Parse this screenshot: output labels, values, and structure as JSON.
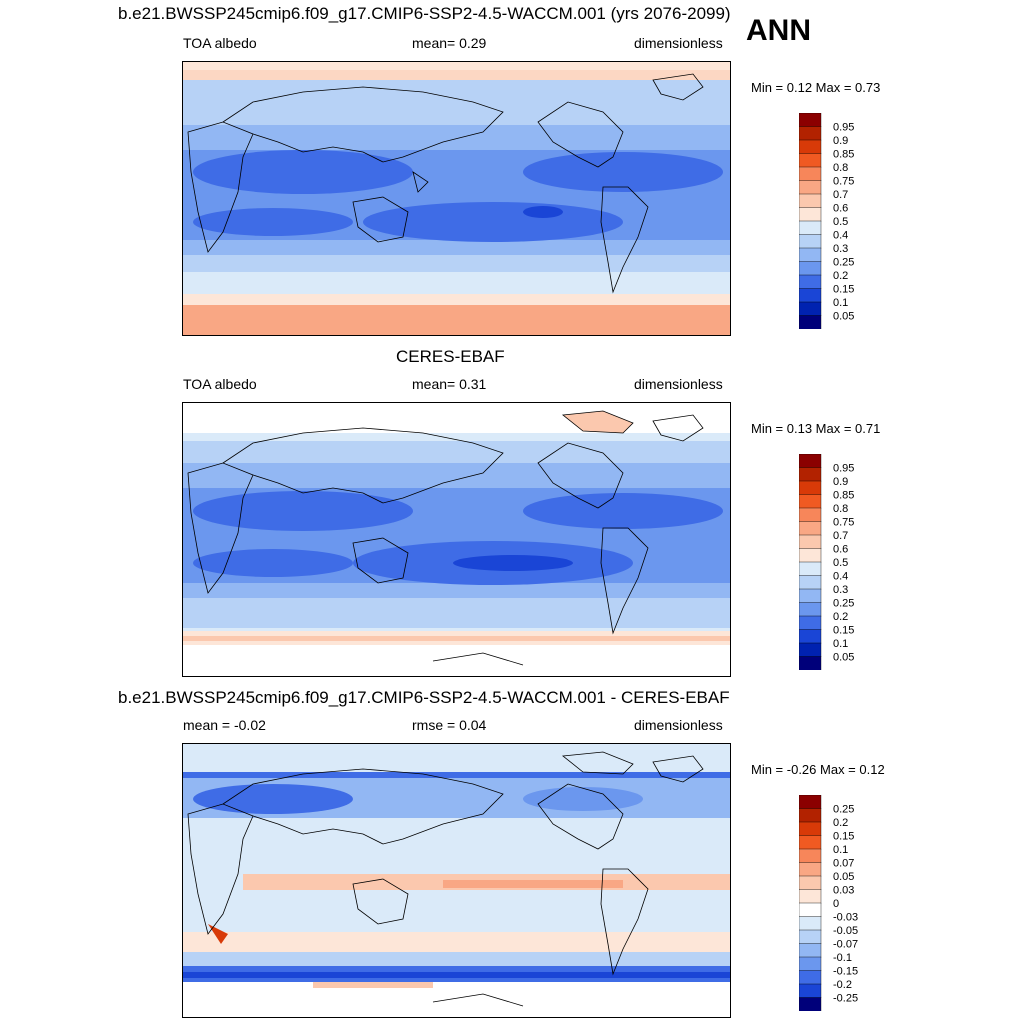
{
  "season": "ANN",
  "panels": [
    {
      "title": "b.e21.BWSSP245cmip6.f09_g17.CMIP6-SSP2-4.5-WACCM.001 (yrs 2076-2099)",
      "left_label": "TOA albedo",
      "center_label": "mean=   0.29",
      "right_label": "dimensionless",
      "minmax": "Min =   0.12 Max =   0.73",
      "colorbar": {
        "labels": [
          "0.95",
          "0.9",
          "0.85",
          "0.8",
          "0.75",
          "0.7",
          "0.6",
          "0.5",
          "0.4",
          "0.3",
          "0.25",
          "0.2",
          "0.15",
          "0.1",
          "0.05"
        ],
        "colors": [
          "#8b0000",
          "#b22200",
          "#d83a08",
          "#f05a22",
          "#f7865a",
          "#f9a784",
          "#fbc8ae",
          "#fde6d8",
          "#daeaf9",
          "#b7d2f6",
          "#92b7f3",
          "#6b97ee",
          "#3f6ce6",
          "#1a45d6",
          "#0022b0",
          "#00007a"
        ]
      }
    },
    {
      "title": "CERES-EBAF",
      "left_label": "TOA albedo",
      "center_label": "mean=   0.31",
      "right_label": "dimensionless",
      "minmax": "Min =   0.13 Max =   0.71",
      "colorbar": {
        "labels": [
          "0.95",
          "0.9",
          "0.85",
          "0.8",
          "0.75",
          "0.7",
          "0.6",
          "0.5",
          "0.4",
          "0.3",
          "0.25",
          "0.2",
          "0.15",
          "0.1",
          "0.05"
        ],
        "colors": [
          "#8b0000",
          "#b22200",
          "#d83a08",
          "#f05a22",
          "#f7865a",
          "#f9a784",
          "#fbc8ae",
          "#fde6d8",
          "#daeaf9",
          "#b7d2f6",
          "#92b7f3",
          "#6b97ee",
          "#3f6ce6",
          "#1a45d6",
          "#0022b0",
          "#00007a"
        ]
      }
    },
    {
      "title": "b.e21.BWSSP245cmip6.f09_g17.CMIP6-SSP2-4.5-WACCM.001 - CERES-EBAF",
      "left_label": "mean =  -0.02",
      "center_label": "rmse =   0.04",
      "right_label": "dimensionless",
      "minmax": "Min =  -0.26 Max =   0.12",
      "colorbar": {
        "labels": [
          "0.25",
          "0.2",
          "0.15",
          "0.1",
          "0.07",
          "0.05",
          "0.03",
          "0",
          "-0.03",
          "-0.05",
          "-0.07",
          "-0.1",
          "-0.15",
          "-0.2",
          "-0.25"
        ],
        "colors": [
          "#8b0000",
          "#b22200",
          "#d83a08",
          "#f05a22",
          "#f7865a",
          "#f9a784",
          "#fbc8ae",
          "#fde6d8",
          "#ffffff",
          "#daeaf9",
          "#b7d2f6",
          "#92b7f3",
          "#6b97ee",
          "#3f6ce6",
          "#1a45d6",
          "#00007a"
        ]
      }
    }
  ]
}
